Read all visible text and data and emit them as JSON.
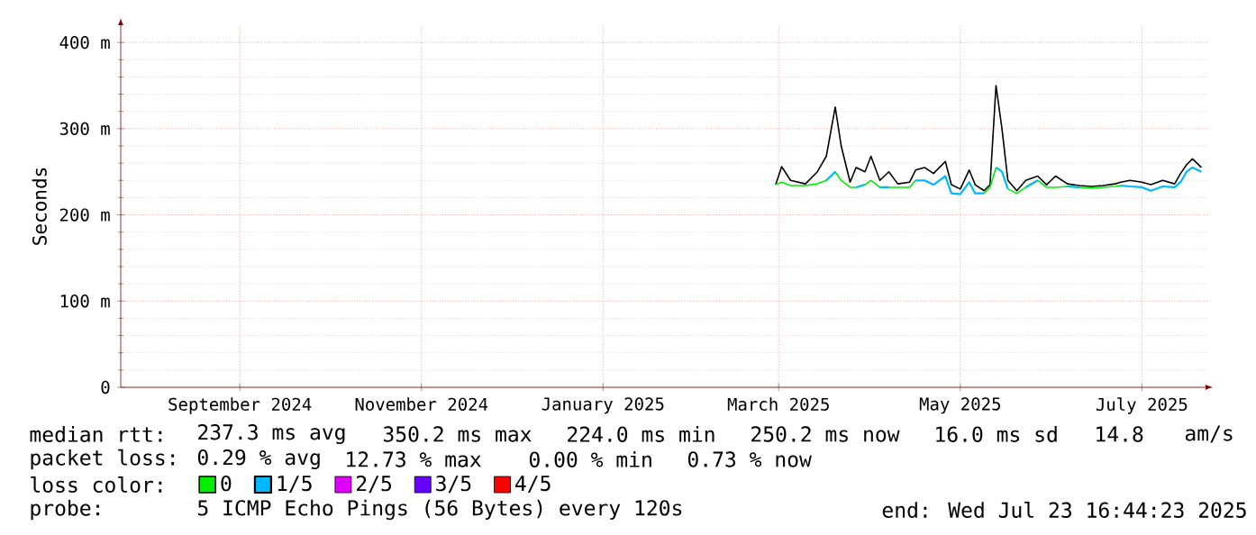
{
  "chart_data": {
    "type": "line",
    "ylabel": "Seconds",
    "x": [
      "2025-02-28",
      "2025-03-02",
      "2025-03-05",
      "2025-03-10",
      "2025-03-14",
      "2025-03-17",
      "2025-03-20",
      "2025-03-22",
      "2025-03-25",
      "2025-03-27",
      "2025-03-30",
      "2025-04-01",
      "2025-04-04",
      "2025-04-07",
      "2025-04-10",
      "2025-04-14",
      "2025-04-16",
      "2025-04-19",
      "2025-04-22",
      "2025-04-26",
      "2025-04-28",
      "2025-05-01",
      "2025-05-04",
      "2025-05-06",
      "2025-05-09",
      "2025-05-11",
      "2025-05-13",
      "2025-05-15",
      "2025-05-17",
      "2025-05-20",
      "2025-05-23",
      "2025-05-27",
      "2025-05-30",
      "2025-06-02",
      "2025-06-06",
      "2025-06-10",
      "2025-06-14",
      "2025-06-18",
      "2025-06-22",
      "2025-06-24",
      "2025-06-27",
      "2025-07-01",
      "2025-07-04",
      "2025-07-08",
      "2025-07-12",
      "2025-07-14",
      "2025-07-16",
      "2025-07-18",
      "2025-07-21"
    ],
    "series": [
      {
        "color": "#000000",
        "values": [
          235,
          256,
          240,
          236,
          250,
          268,
          325,
          280,
          238,
          255,
          250,
          268,
          240,
          250,
          236,
          238,
          252,
          255,
          248,
          262,
          235,
          230,
          252,
          235,
          228,
          235,
          350,
          300,
          240,
          228,
          240,
          245,
          235,
          245,
          236,
          234,
          233,
          234,
          236,
          238,
          240,
          238,
          235,
          240,
          236,
          248,
          258,
          265,
          255
        ]
      },
      {
        "name": "0",
        "color": "#00ee00",
        "values": [
          235,
          238,
          234,
          234,
          236,
          240,
          250,
          240,
          232,
          232,
          235,
          240,
          232,
          232,
          232,
          232,
          240,
          null,
          null,
          null,
          null,
          null,
          null,
          null,
          225,
          232,
          255,
          null,
          230,
          225,
          232,
          240,
          232,
          232,
          233,
          232,
          231,
          232,
          233,
          234,
          null,
          null,
          null,
          null,
          null,
          null,
          null,
          null,
          null
        ]
      },
      {
        "name": "1/5",
        "color": "#00b8ff",
        "values": [
          null,
          null,
          null,
          null,
          null,
          240,
          250,
          null,
          null,
          232,
          235,
          null,
          232,
          232,
          null,
          null,
          240,
          240,
          235,
          245,
          225,
          224,
          238,
          225,
          225,
          null,
          255,
          250,
          230,
          null,
          232,
          240,
          null,
          null,
          233,
          232,
          null,
          null,
          null,
          234,
          233,
          232,
          228,
          233,
          232,
          238,
          250,
          255,
          250
        ]
      },
      {
        "name": "2/5",
        "color": "#dd00ff",
        "values": [
          null,
          null,
          null,
          null,
          null,
          null,
          null,
          null,
          null,
          null,
          null,
          null,
          null,
          null,
          null,
          null,
          null,
          null,
          null,
          null,
          null,
          null,
          null,
          null,
          null,
          null,
          null,
          null,
          null,
          null,
          null,
          null,
          null,
          null,
          null,
          null,
          null,
          null,
          null,
          null,
          null,
          null,
          null,
          null,
          null,
          null,
          null,
          null,
          null
        ]
      },
      {
        "name": "3/5",
        "color": "#6600ff",
        "values": [
          null,
          null,
          null,
          null,
          null,
          null,
          null,
          null,
          null,
          null,
          null,
          null,
          null,
          null,
          null,
          null,
          null,
          null,
          null,
          null,
          null,
          null,
          null,
          null,
          null,
          null,
          null,
          null,
          null,
          null,
          null,
          null,
          null,
          null,
          null,
          null,
          null,
          null,
          null,
          null,
          null,
          null,
          null,
          null,
          null,
          null,
          null,
          null,
          null
        ]
      },
      {
        "name": "4/5",
        "color": "#ff0000",
        "values": [
          null,
          null,
          null,
          null,
          null,
          null,
          null,
          null,
          null,
          null,
          null,
          null,
          null,
          null,
          null,
          null,
          null,
          null,
          null,
          null,
          null,
          null,
          null,
          null,
          null,
          null,
          null,
          null,
          null,
          null,
          null,
          null,
          null,
          null,
          null,
          null,
          null,
          null,
          null,
          null,
          null,
          null,
          null,
          null,
          null,
          null,
          null,
          null,
          null
        ]
      }
    ],
    "xlim": [
      "2024-07-23",
      "2025-07-23"
    ],
    "xticks": [
      {
        "value": "2024-09-01",
        "label": "September 2024"
      },
      {
        "value": "2024-11-01",
        "label": "November 2024"
      },
      {
        "value": "2025-01-01",
        "label": "January 2025"
      },
      {
        "value": "2025-03-01",
        "label": "March 2025"
      },
      {
        "value": "2025-05-01",
        "label": "May 2025"
      },
      {
        "value": "2025-07-01",
        "label": "July 2025"
      }
    ],
    "ylim": [
      0,
      420
    ],
    "yticks": [
      0,
      {
        "value": 100,
        "label": "100 m"
      },
      {
        "value": 200,
        "label": "200 m"
      },
      {
        "value": 300,
        "label": "300 m"
      },
      {
        "value": 400,
        "label": "400 m"
      }
    ],
    "grid": true,
    "legend": "bottom",
    "legend_title": "loss color:",
    "marker": "none",
    "line_style": "solid",
    "annotations": [
      "median rtt:",
      "237.3 ms avg",
      "350.2 ms max",
      "224.0 ms min",
      "250.2 ms now",
      "16.0 ms sd",
      "14.8",
      "am/s",
      "packet loss:",
      "0.29 % avg",
      "12.73 % max",
      "0.00 % min",
      "0.73 % now",
      "probe:",
      "5 ICMP Echo Pings (56 Bytes) every 120s",
      "end: Wed Jul 23 16:44:23 2025"
    ]
  }
}
